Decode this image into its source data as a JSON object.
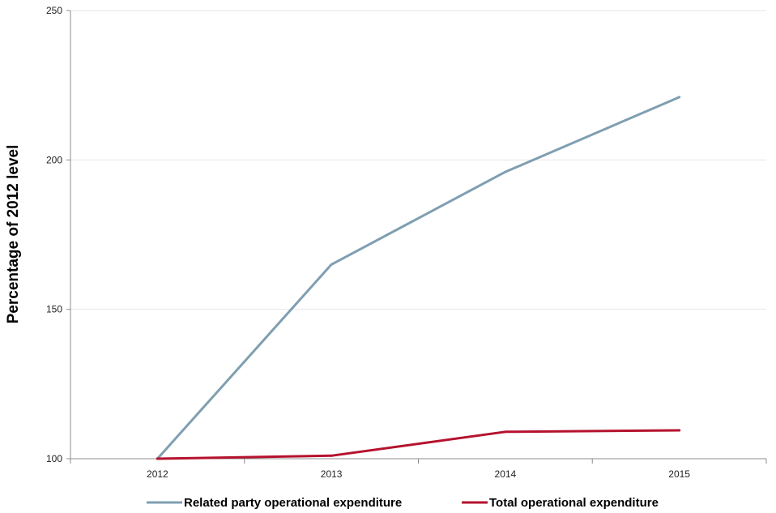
{
  "chart_data": {
    "type": "line",
    "title": "",
    "xlabel": "",
    "ylabel": "Percentage of 2012 level",
    "categories": [
      "2012",
      "2013",
      "2014",
      "2015"
    ],
    "ylim": [
      100,
      250
    ],
    "yticks": [
      100,
      150,
      200,
      250
    ],
    "grid": "horizontal",
    "legend_position": "bottom",
    "series": [
      {
        "name": "Related party operational expenditure",
        "color": "#7f9fb1",
        "values": [
          100,
          165,
          196,
          221
        ]
      },
      {
        "name": "Total operational expenditure",
        "color": "#b5122e",
        "values": [
          100,
          101,
          109,
          109.5
        ]
      }
    ]
  }
}
